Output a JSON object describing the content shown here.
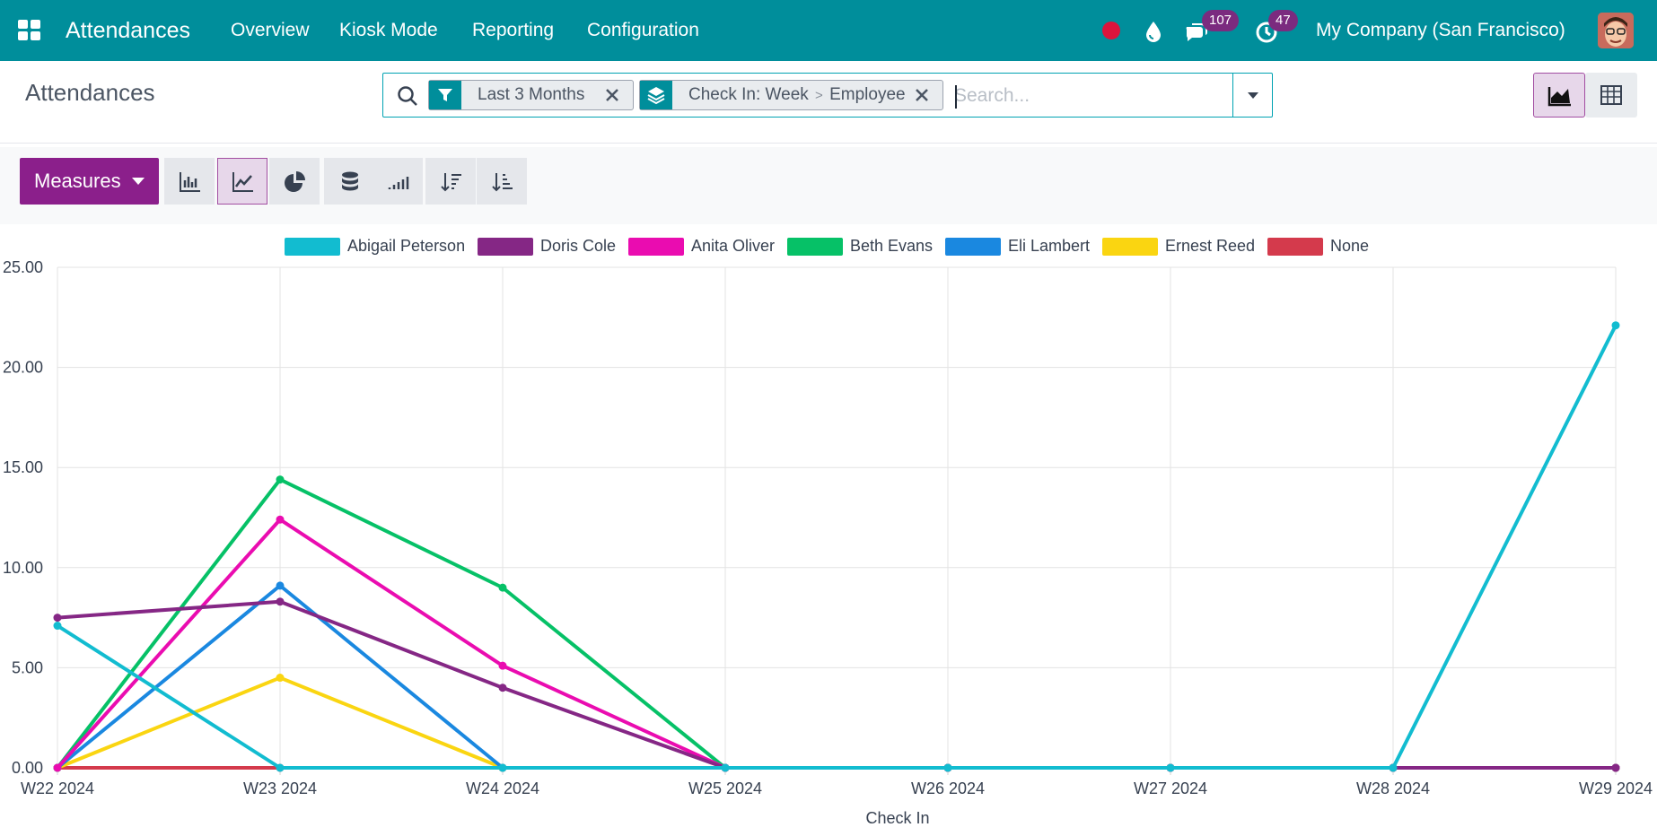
{
  "navbar": {
    "app_title": "Attendances",
    "menu": [
      "Overview",
      "Kiosk Mode",
      "Reporting",
      "Configuration"
    ],
    "messages_count": "107",
    "activities_count": "47",
    "company": "My Company (San Francisco)",
    "icons": [
      "apps-grid-icon",
      "recording-dot-icon",
      "droplet-icon",
      "chat-icon",
      "clock-icon",
      "avatar"
    ]
  },
  "control_panel": {
    "breadcrumb": "Attendances",
    "search": {
      "facets": [
        {
          "icon": "filter-icon",
          "label": "Last 3 Months"
        },
        {
          "icon": "layers-icon",
          "label_a": "Check In: Week",
          "separator": ">",
          "label_b": "Employee"
        }
      ],
      "placeholder": "Search..."
    },
    "views": [
      "graph",
      "pivot"
    ],
    "active_view": "graph"
  },
  "toolbar": {
    "measures_label": "Measures",
    "buttons": [
      "bar-chart-icon",
      "line-chart-icon",
      "pie-chart-icon",
      "stacked-icon",
      "cumulative-icon",
      "sort-descending-icon",
      "sort-ascending-icon"
    ],
    "active": "line-chart-icon"
  },
  "colors": {
    "navbar": "#008e9b",
    "primary": "#8b1f8b"
  },
  "chart_data": {
    "type": "line",
    "xlabel": "Check In",
    "ylabel": "",
    "ylim": [
      0,
      25
    ],
    "yticks": [
      "0.00",
      "5.00",
      "10.00",
      "15.00",
      "20.00",
      "25.00"
    ],
    "grid": true,
    "legend": "top-center",
    "categories": [
      "W22 2024",
      "W23 2024",
      "W24 2024",
      "W25 2024",
      "W26 2024",
      "W27 2024",
      "W28 2024",
      "W29 2024"
    ],
    "series": [
      {
        "name": "Abigail Peterson",
        "color": "#12bcd0",
        "values": [
          7.1,
          0,
          0,
          0,
          0,
          0,
          0,
          22.1
        ]
      },
      {
        "name": "Doris Cole",
        "color": "#852785",
        "values": [
          7.5,
          8.3,
          4.0,
          0,
          0,
          0,
          0,
          0
        ]
      },
      {
        "name": "Anita Oliver",
        "color": "#ea0cb0",
        "values": [
          0,
          12.4,
          5.1,
          0,
          0,
          0,
          0,
          0
        ]
      },
      {
        "name": "Beth Evans",
        "color": "#06c167",
        "values": [
          0,
          14.4,
          9.0,
          0,
          0,
          0,
          0,
          0
        ]
      },
      {
        "name": "Eli Lambert",
        "color": "#1a88e0",
        "values": [
          0,
          9.1,
          0,
          0,
          0,
          0,
          0,
          0
        ]
      },
      {
        "name": "Ernest Reed",
        "color": "#fad511",
        "values": [
          0,
          4.5,
          0,
          0,
          0,
          0,
          0,
          0
        ]
      },
      {
        "name": "None",
        "color": "#d43a4c",
        "values": [
          0,
          0,
          0,
          0,
          0,
          0,
          0,
          0
        ]
      }
    ]
  }
}
